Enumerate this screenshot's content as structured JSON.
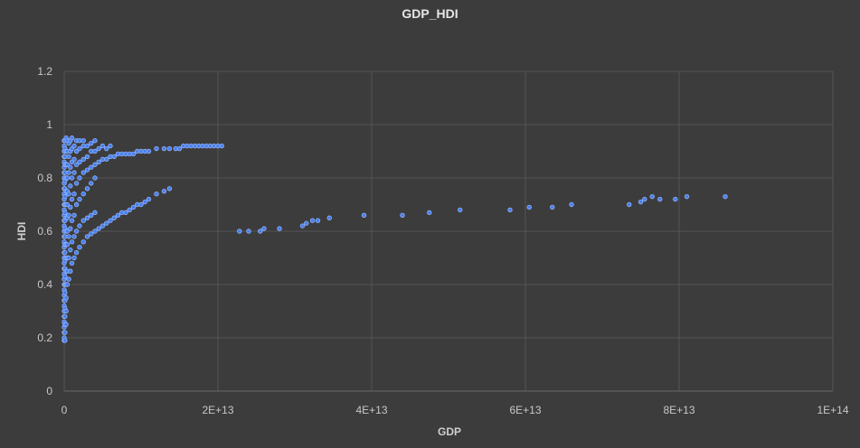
{
  "chart_data": {
    "type": "scatter",
    "title": "GDP_HDI",
    "xlabel": "GDP",
    "ylabel": "HDI",
    "xlim": [
      0,
      100000000000000
    ],
    "ylim": [
      0,
      1.2
    ],
    "x_ticks": [
      0,
      20000000000000,
      40000000000000,
      60000000000000,
      80000000000000,
      100000000000000
    ],
    "x_tick_labels": [
      "0",
      "2E+13",
      "4E+13",
      "6E+13",
      "8E+13",
      "1E+14"
    ],
    "y_ticks": [
      0,
      0.2,
      0.4,
      0.6,
      0.8,
      1,
      1.2
    ],
    "y_tick_labels": [
      "0",
      "0.2",
      "0.4",
      "0.6",
      "0.8",
      "1",
      "1.2"
    ],
    "grid": true,
    "legend": "none",
    "colors": {
      "background": "#3c3c3c",
      "grid": "#555555",
      "marker": "#4a7fe8",
      "marker_edge": "#8fb3ff"
    },
    "series": [
      {
        "values_xy": [
          [
            0,
            0.19
          ],
          [
            0,
            0.2
          ],
          [
            0,
            0.22
          ],
          [
            0,
            0.24
          ],
          [
            0,
            0.26
          ],
          [
            0,
            0.28
          ],
          [
            0,
            0.3
          ],
          [
            0,
            0.32
          ],
          [
            0,
            0.34
          ],
          [
            0,
            0.36
          ],
          [
            0,
            0.38
          ],
          [
            0,
            0.4
          ],
          [
            0,
            0.42
          ],
          [
            0,
            0.44
          ],
          [
            0,
            0.46
          ],
          [
            0,
            0.48
          ],
          [
            0,
            0.5
          ],
          [
            0,
            0.52
          ],
          [
            0,
            0.54
          ],
          [
            0,
            0.56
          ],
          [
            0,
            0.58
          ],
          [
            0,
            0.6
          ],
          [
            0,
            0.62
          ],
          [
            0,
            0.64
          ],
          [
            0,
            0.66
          ],
          [
            0,
            0.68
          ],
          [
            0,
            0.7
          ],
          [
            0,
            0.72
          ],
          [
            0,
            0.74
          ],
          [
            0,
            0.76
          ],
          [
            0,
            0.78
          ],
          [
            0,
            0.8
          ],
          [
            0,
            0.82
          ],
          [
            0,
            0.84
          ],
          [
            0,
            0.86
          ],
          [
            0,
            0.88
          ],
          [
            0,
            0.9
          ],
          [
            0,
            0.92
          ],
          [
            0,
            0.94
          ],
          [
            100000000000,
            0.19
          ],
          [
            100000000000,
            0.22
          ],
          [
            100000000000,
            0.25
          ],
          [
            100000000000,
            0.28
          ],
          [
            100000000000,
            0.31
          ],
          [
            100000000000,
            0.34
          ],
          [
            100000000000,
            0.37
          ],
          [
            100000000000,
            0.4
          ],
          [
            100000000000,
            0.43
          ],
          [
            100000000000,
            0.46
          ],
          [
            100000000000,
            0.49
          ],
          [
            100000000000,
            0.52
          ],
          [
            100000000000,
            0.55
          ],
          [
            100000000000,
            0.58
          ],
          [
            100000000000,
            0.61
          ],
          [
            100000000000,
            0.64
          ],
          [
            100000000000,
            0.67
          ],
          [
            100000000000,
            0.7
          ],
          [
            100000000000,
            0.73
          ],
          [
            100000000000,
            0.76
          ],
          [
            100000000000,
            0.79
          ],
          [
            100000000000,
            0.82
          ],
          [
            100000000000,
            0.85
          ],
          [
            100000000000,
            0.88
          ],
          [
            100000000000,
            0.91
          ],
          [
            100000000000,
            0.94
          ],
          [
            250000000000,
            0.25
          ],
          [
            250000000000,
            0.3
          ],
          [
            250000000000,
            0.35
          ],
          [
            250000000000,
            0.4
          ],
          [
            250000000000,
            0.45
          ],
          [
            250000000000,
            0.5
          ],
          [
            250000000000,
            0.55
          ],
          [
            250000000000,
            0.6
          ],
          [
            250000000000,
            0.65
          ],
          [
            250000000000,
            0.7
          ],
          [
            250000000000,
            0.75
          ],
          [
            250000000000,
            0.8
          ],
          [
            250000000000,
            0.85
          ],
          [
            250000000000,
            0.9
          ],
          [
            250000000000,
            0.95
          ],
          [
            400000000000,
            0.4
          ],
          [
            400000000000,
            0.45
          ],
          [
            400000000000,
            0.5
          ],
          [
            400000000000,
            0.55
          ],
          [
            400000000000,
            0.6
          ],
          [
            400000000000,
            0.65
          ],
          [
            400000000000,
            0.7
          ],
          [
            400000000000,
            0.75
          ],
          [
            400000000000,
            0.8
          ],
          [
            400000000000,
            0.85
          ],
          [
            400000000000,
            0.9
          ],
          [
            400000000000,
            0.94
          ],
          [
            600000000000,
            0.42
          ],
          [
            600000000000,
            0.5
          ],
          [
            600000000000,
            0.58
          ],
          [
            600000000000,
            0.66
          ],
          [
            600000000000,
            0.74
          ],
          [
            600000000000,
            0.82
          ],
          [
            600000000000,
            0.88
          ],
          [
            600000000000,
            0.93
          ],
          [
            800000000000,
            0.45
          ],
          [
            800000000000,
            0.53
          ],
          [
            800000000000,
            0.61
          ],
          [
            800000000000,
            0.69
          ],
          [
            800000000000,
            0.77
          ],
          [
            800000000000,
            0.84
          ],
          [
            800000000000,
            0.9
          ],
          [
            800000000000,
            0.94
          ],
          [
            1000000000000,
            0.48
          ],
          [
            1000000000000,
            0.56
          ],
          [
            1000000000000,
            0.64
          ],
          [
            1000000000000,
            0.72
          ],
          [
            1000000000000,
            0.8
          ],
          [
            1000000000000,
            0.86
          ],
          [
            1000000000000,
            0.91
          ],
          [
            1000000000000,
            0.95
          ],
          [
            1300000000000,
            0.5
          ],
          [
            1300000000000,
            0.58
          ],
          [
            1300000000000,
            0.66
          ],
          [
            1300000000000,
            0.74
          ],
          [
            1300000000000,
            0.82
          ],
          [
            1300000000000,
            0.87
          ],
          [
            1300000000000,
            0.92
          ],
          [
            1600000000000,
            0.52
          ],
          [
            1600000000000,
            0.6
          ],
          [
            1600000000000,
            0.7
          ],
          [
            1600000000000,
            0.78
          ],
          [
            1600000000000,
            0.85
          ],
          [
            1600000000000,
            0.9
          ],
          [
            1600000000000,
            0.94
          ],
          [
            2000000000000,
            0.54
          ],
          [
            2000000000000,
            0.62
          ],
          [
            2000000000000,
            0.72
          ],
          [
            2000000000000,
            0.8
          ],
          [
            2000000000000,
            0.86
          ],
          [
            2000000000000,
            0.91
          ],
          [
            2000000000000,
            0.94
          ],
          [
            2500000000000,
            0.56
          ],
          [
            2500000000000,
            0.64
          ],
          [
            2500000000000,
            0.74
          ],
          [
            2500000000000,
            0.82
          ],
          [
            2500000000000,
            0.87
          ],
          [
            2500000000000,
            0.92
          ],
          [
            2500000000000,
            0.94
          ],
          [
            3000000000000,
            0.58
          ],
          [
            3000000000000,
            0.65
          ],
          [
            3000000000000,
            0.76
          ],
          [
            3000000000000,
            0.83
          ],
          [
            3000000000000,
            0.88
          ],
          [
            3000000000000,
            0.92
          ],
          [
            3500000000000,
            0.59
          ],
          [
            3500000000000,
            0.66
          ],
          [
            3500000000000,
            0.78
          ],
          [
            3500000000000,
            0.84
          ],
          [
            3500000000000,
            0.9
          ],
          [
            3500000000000,
            0.93
          ],
          [
            4000000000000,
            0.6
          ],
          [
            4000000000000,
            0.67
          ],
          [
            4000000000000,
            0.8
          ],
          [
            4000000000000,
            0.85
          ],
          [
            4000000000000,
            0.9
          ],
          [
            4000000000000,
            0.94
          ],
          [
            4500000000000,
            0.61
          ],
          [
            4500000000000,
            0.86
          ],
          [
            4500000000000,
            0.91
          ],
          [
            5000000000000,
            0.62
          ],
          [
            5000000000000,
            0.87
          ],
          [
            5000000000000,
            0.92
          ],
          [
            5500000000000,
            0.63
          ],
          [
            5500000000000,
            0.87
          ],
          [
            5500000000000,
            0.91
          ],
          [
            6000000000000,
            0.64
          ],
          [
            6000000000000,
            0.88
          ],
          [
            6000000000000,
            0.92
          ],
          [
            6500000000000,
            0.65
          ],
          [
            6500000000000,
            0.88
          ],
          [
            7000000000000,
            0.66
          ],
          [
            7000000000000,
            0.89
          ],
          [
            7500000000000,
            0.67
          ],
          [
            7500000000000,
            0.89
          ],
          [
            8000000000000,
            0.67
          ],
          [
            8000000000000,
            0.89
          ],
          [
            8500000000000,
            0.68
          ],
          [
            8500000000000,
            0.89
          ],
          [
            9000000000000,
            0.69
          ],
          [
            9000000000000,
            0.89
          ],
          [
            9500000000000,
            0.7
          ],
          [
            9500000000000,
            0.9
          ],
          [
            10000000000000,
            0.7
          ],
          [
            10000000000000,
            0.9
          ],
          [
            10500000000000,
            0.71
          ],
          [
            10500000000000,
            0.9
          ],
          [
            11000000000000,
            0.72
          ],
          [
            11000000000000,
            0.9
          ],
          [
            12000000000000,
            0.74
          ],
          [
            12000000000000,
            0.91
          ],
          [
            13000000000000,
            0.75
          ],
          [
            13000000000000,
            0.91
          ],
          [
            13700000000000,
            0.76
          ],
          [
            13700000000000,
            0.91
          ],
          [
            14500000000000,
            0.91
          ],
          [
            15000000000000,
            0.91
          ],
          [
            15500000000000,
            0.92
          ],
          [
            16000000000000,
            0.92
          ],
          [
            16500000000000,
            0.92
          ],
          [
            17000000000000,
            0.92
          ],
          [
            17500000000000,
            0.92
          ],
          [
            18000000000000,
            0.92
          ],
          [
            18500000000000,
            0.92
          ],
          [
            19000000000000,
            0.92
          ],
          [
            19500000000000,
            0.92
          ],
          [
            20000000000000,
            0.92
          ],
          [
            20500000000000,
            0.92
          ],
          [
            22800000000000,
            0.6
          ],
          [
            24000000000000,
            0.6
          ],
          [
            25500000000000,
            0.6
          ],
          [
            26000000000000,
            0.61
          ],
          [
            28000000000000,
            0.61
          ],
          [
            31000000000000,
            0.62
          ],
          [
            31500000000000,
            0.63
          ],
          [
            32300000000000,
            0.64
          ],
          [
            33000000000000,
            0.64
          ],
          [
            34500000000000,
            0.65
          ],
          [
            39000000000000,
            0.66
          ],
          [
            44000000000000,
            0.66
          ],
          [
            47500000000000,
            0.67
          ],
          [
            51500000000000,
            0.68
          ],
          [
            58000000000000,
            0.68
          ],
          [
            60500000000000,
            0.69
          ],
          [
            63500000000000,
            0.69
          ],
          [
            66000000000000,
            0.7
          ],
          [
            73500000000000,
            0.7
          ],
          [
            75000000000000,
            0.71
          ],
          [
            75500000000000,
            0.72
          ],
          [
            76500000000000,
            0.73
          ],
          [
            77500000000000,
            0.72
          ],
          [
            79500000000000,
            0.72
          ],
          [
            81000000000000,
            0.73
          ],
          [
            86000000000000,
            0.73
          ]
        ]
      }
    ]
  }
}
